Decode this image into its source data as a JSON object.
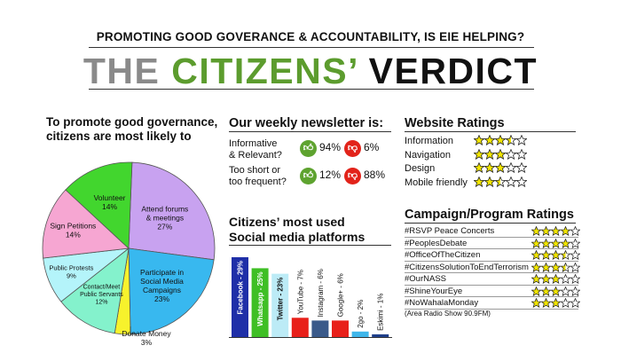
{
  "header": {
    "subtitle": "PROMOTING GOOD GOVERANCE & ACCOUNTABILITY, IS EIE HELPING?",
    "title_part1": "THE",
    "title_part2": "CITIZENS’",
    "title_part3": "VERDICT"
  },
  "pie_section": {
    "heading_line1": "To promote good governance,",
    "heading_line2": "citizens are most likely to"
  },
  "newsletter": {
    "heading": "Our weekly newsletter is:",
    "rows": [
      {
        "label1": "Informative",
        "label2": "& Relevant?",
        "yes": "94%",
        "no": "6%"
      },
      {
        "label1": "Too short or",
        "label2": "too frequent?",
        "yes": "12%",
        "no": "88%"
      }
    ]
  },
  "social": {
    "heading_line1": "Citizens’ most used",
    "heading_line2": "Social media platforms"
  },
  "website": {
    "heading": "Website Ratings",
    "items": [
      {
        "label": "Information",
        "stars": 3.5
      },
      {
        "label": "Navigation",
        "stars": 3
      },
      {
        "label": "Design",
        "stars": 3
      },
      {
        "label": "Mobile friendly",
        "stars": 2.5
      }
    ]
  },
  "campaign": {
    "heading": "Campaign/Program Ratings",
    "items": [
      {
        "label": "#RSVP Peace Concerts",
        "stars": 4
      },
      {
        "label": "#PeoplesDebate",
        "stars": 4
      },
      {
        "label": "#OfficeOfTheCitizen",
        "stars": 3.5
      },
      {
        "label": "#CitizensSolutionToEndTerrorism",
        "stars": 3.5
      },
      {
        "label": "#OurNASS",
        "stars": 3
      },
      {
        "label": "#ShineYourEye",
        "stars": 3
      },
      {
        "label": "#NoWahalaMonday",
        "stars": 3
      }
    ],
    "note": "(Area Radio Show 90.9FM)"
  },
  "colors": {
    "thumb_up": "#5ea32f",
    "thumb_down": "#e2231a",
    "star_fill": "#f2e600"
  },
  "chart_data": [
    {
      "type": "pie",
      "slices": [
        {
          "label": "Attend forums & meetings",
          "value": 27,
          "text": "Attend forums\n& meetings\n27%",
          "color": "#c8a2f0"
        },
        {
          "label": "Participate in Social Media Campaigns",
          "value": 23,
          "text": "Participate in\nSocial Media\nCampaigns\n23%",
          "color": "#38b8ef"
        },
        {
          "label": "Donate Money",
          "value": 3,
          "text": "Donate Money\n3%",
          "color": "#f7f22c"
        },
        {
          "label": "Contact/Meet Public Servants",
          "value": 12,
          "text": "Contact/Meet\nPublic Servants\n12%",
          "color": "#84f2cc"
        },
        {
          "label": "Public Protests",
          "value": 9,
          "text": "Public Protests\n9%",
          "color": "#b4f4fa"
        },
        {
          "label": "Sign Petitions",
          "value": 14,
          "text": "Sign Petitions\n14%",
          "color": "#f6a6d2"
        },
        {
          "label": "Volunteer",
          "value": 14,
          "text": "Volunteer\n14%",
          "color": "#42d62e"
        }
      ]
    },
    {
      "type": "bar",
      "categories": [
        "Facebook",
        "Whatsapp",
        "Twitter",
        "YouTube",
        "Instagram",
        "Google+",
        "2go",
        "Eskimi"
      ],
      "values": [
        29,
        25,
        23,
        7,
        6,
        6,
        2,
        1
      ],
      "bar_labels": [
        "Facebook - 29%",
        "Whatsapp - 25%",
        "Twitter - 23%",
        "YouTube - 7%",
        "Instagram - 6%",
        "Google+ - 6%",
        "2go - 2%",
        "Eskimi - 1%"
      ],
      "colors": [
        "#1f2fa8",
        "#3fbf25",
        "#bcebf6",
        "#e8201a",
        "#3a5a8a",
        "#e8201a",
        "#3fb6ea",
        "#1f3f8a"
      ]
    }
  ]
}
